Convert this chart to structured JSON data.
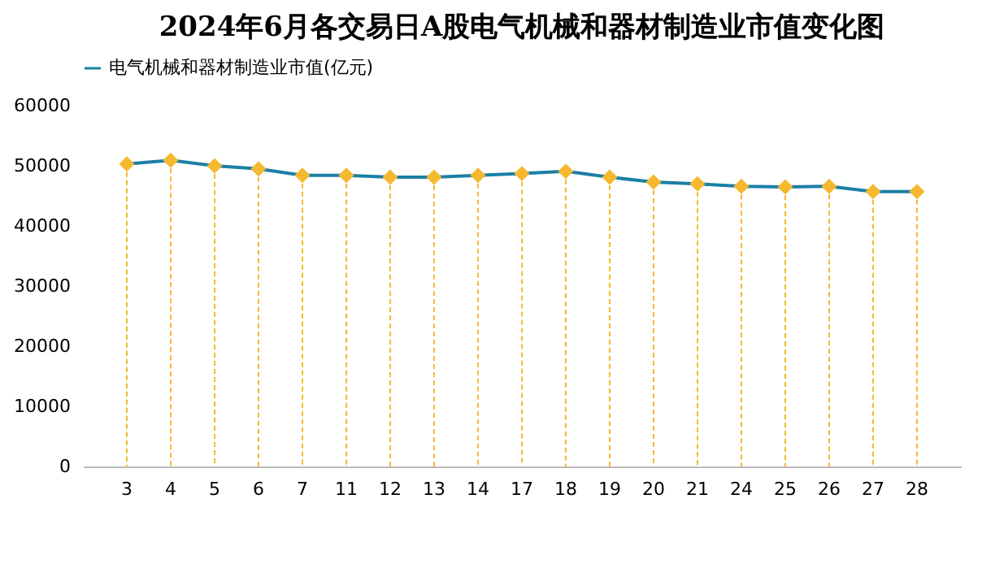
{
  "chart_data": {
    "type": "line",
    "title": "2024年6月各交易日A股电气机械和器材制造业市值变化图",
    "categories": [
      "3",
      "4",
      "5",
      "6",
      "7",
      "11",
      "12",
      "13",
      "14",
      "17",
      "18",
      "19",
      "20",
      "21",
      "24",
      "25",
      "26",
      "27",
      "28"
    ],
    "series": [
      {
        "name": "电气机械和器材制造业市值(亿元)",
        "color": "#1b7fa6",
        "values": [
          50300,
          50900,
          50000,
          49500,
          48400,
          48400,
          48100,
          48100,
          48400,
          48700,
          49100,
          48100,
          47300,
          47000,
          46600,
          46500,
          46600,
          45700,
          45700
        ]
      }
    ],
    "marker": "diamond",
    "ylim": [
      0,
      60000
    ],
    "yticks": [
      0,
      10000,
      20000,
      30000,
      40000,
      50000,
      60000
    ],
    "grid": "x",
    "legend": "top"
  }
}
